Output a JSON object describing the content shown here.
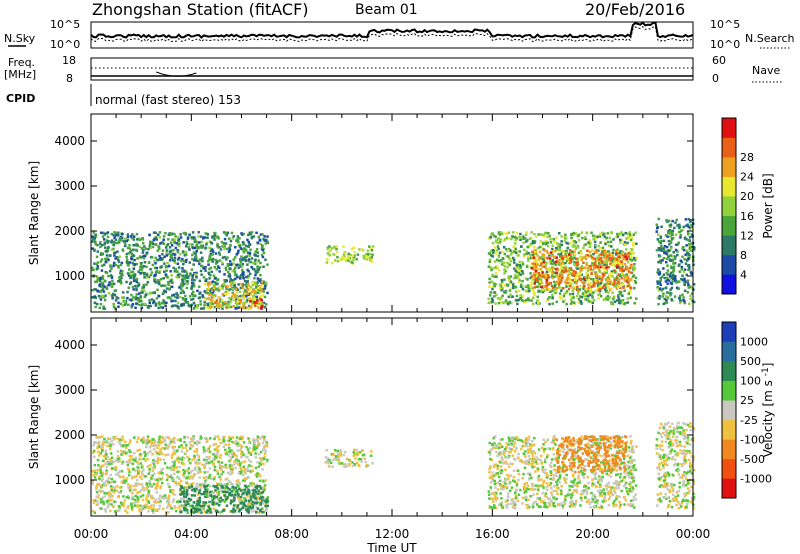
{
  "header": {
    "station": "Zhongshan Station (fitACF)",
    "beam": "Beam 01",
    "date": "20/Feb/2016"
  },
  "strip_labels": {
    "nsky": "N.Sky",
    "nsky_ticks": [
      "10^5",
      "10^0"
    ],
    "nsearch": "N.Search",
    "nsearch_ticks": [
      "10^5",
      "10^0"
    ],
    "freq_line1": "Freq.",
    "freq_line2": "[MHz]",
    "freq_ticks": [
      "18",
      "8"
    ],
    "nave": "Nave",
    "nave_ticks": [
      "60",
      "0"
    ],
    "cpid": "CPID",
    "cpid_text": "normal (fast stereo) 153"
  },
  "chart_data": [
    {
      "type": "heatmap",
      "title": "Power [dB]",
      "xlabel": "",
      "ylabel": "Slant Range [km]",
      "xlim": [
        "00:00",
        "24:00"
      ],
      "ylim": [
        200,
        4600
      ],
      "yticks": [
        1000,
        2000,
        3000,
        4000
      ],
      "colorbar": {
        "label": "Power [dB]",
        "ticks": [
          4,
          8,
          12,
          16,
          20,
          24,
          28
        ],
        "colors": [
          "#1010e0",
          "#1c4aa6",
          "#2b7a68",
          "#4aa63a",
          "#8fd23c",
          "#e8e830",
          "#f0a020",
          "#e86018",
          "#e01010"
        ]
      },
      "echo_regions": [
        {
          "t0": 0.0,
          "t1": 7.0,
          "r0": 300,
          "r1": 2000,
          "value": 10
        },
        {
          "t0": 4.5,
          "t1": 6.8,
          "r0": 300,
          "r1": 900,
          "value": 20
        },
        {
          "t0": 6.2,
          "t1": 6.8,
          "r0": 300,
          "r1": 500,
          "value": 28
        },
        {
          "t0": 9.3,
          "t1": 11.2,
          "r0": 1300,
          "r1": 1700,
          "value": 16
        },
        {
          "t0": 15.8,
          "t1": 21.7,
          "r0": 400,
          "r1": 2000,
          "value": 14
        },
        {
          "t0": 17.5,
          "t1": 21.5,
          "r0": 700,
          "r1": 1600,
          "value": 24
        },
        {
          "t0": 22.5,
          "t1": 24.0,
          "r0": 400,
          "r1": 2300,
          "value": 10
        }
      ]
    },
    {
      "type": "heatmap",
      "title": "Velocity [m s^-1]",
      "xlabel": "Time UT",
      "ylabel": "Slant Range [km]",
      "xlim": [
        "00:00",
        "24:00"
      ],
      "xticks": [
        "00:00",
        "04:00",
        "08:00",
        "12:00",
        "16:00",
        "20:00",
        "00:00"
      ],
      "ylim": [
        200,
        4600
      ],
      "yticks": [
        1000,
        2000,
        3000,
        4000
      ],
      "colorbar": {
        "label": "Velocity",
        "unit_base": "[m s",
        "unit_exp": "-1",
        "unit_close": "]",
        "ticks": [
          1000,
          500,
          100,
          25,
          -25,
          -100,
          -500,
          -1000
        ],
        "colors": [
          "#1c3fb8",
          "#2a6ea0",
          "#2e8a55",
          "#55c83a",
          "#c8c8c0",
          "#f0c040",
          "#f08a20",
          "#f05010",
          "#e01010"
        ]
      },
      "echo_regions": [
        {
          "t0": 0.0,
          "t1": 7.0,
          "r0": 300,
          "r1": 2000,
          "value": 0
        },
        {
          "t0": 3.5,
          "t1": 7.0,
          "r0": 300,
          "r1": 900,
          "value": 200
        },
        {
          "t0": 9.3,
          "t1": 11.2,
          "r0": 1300,
          "r1": 1700,
          "value": 0
        },
        {
          "t0": 15.8,
          "t1": 21.7,
          "r0": 400,
          "r1": 2000,
          "value": 0
        },
        {
          "t0": 18.5,
          "t1": 21.3,
          "r0": 1200,
          "r1": 2000,
          "value": -300
        },
        {
          "t0": 22.5,
          "t1": 24.0,
          "r0": 400,
          "r1": 2300,
          "value": 0
        }
      ]
    }
  ]
}
